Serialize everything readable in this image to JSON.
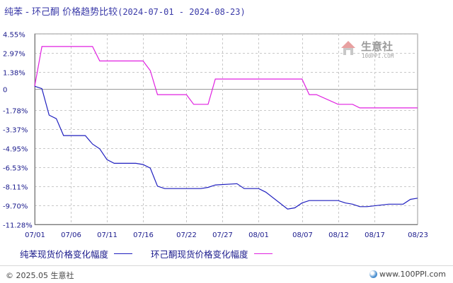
{
  "title": {
    "text": "纯苯 - 环己酮 价格趋势比较",
    "range": "(2024-07-01 - 2024-08-23)"
  },
  "legend": {
    "items": [
      {
        "label": "纯苯现货价格变化幅度",
        "color": "#1f1fbf"
      },
      {
        "label": "环己酮现货价格变化幅度",
        "color": "#e020e0"
      }
    ]
  },
  "watermark": {
    "name": "生意社",
    "url": "100PPI.COM"
  },
  "footer": {
    "copyright": "© 2025.05 生意社",
    "url": "www.100PPI.com"
  },
  "chart_data": {
    "type": "line",
    "title": "纯苯 - 环己酮 价格趋势比较",
    "xlabel": "",
    "ylabel": "",
    "x_ticks": [
      "07/01",
      "07/06",
      "07/11",
      "07/16",
      "07/22",
      "07/27",
      "08/01",
      "08/07",
      "08/12",
      "08/17",
      "08/23"
    ],
    "y_ticks": [
      "4.55%",
      "2.97%",
      "1.38%",
      "0",
      "-1.78%",
      "-3.37%",
      "-4.95%",
      "-6.53%",
      "-8.11%",
      "-9.70%",
      "-11.28%"
    ],
    "y_tick_values": [
      4.55,
      2.97,
      1.38,
      0,
      -1.78,
      -3.37,
      -4.95,
      -6.53,
      -8.11,
      -9.7,
      -11.28
    ],
    "ylim": [
      -11.28,
      4.55
    ],
    "x_range": [
      "07/01",
      "08/23"
    ],
    "grid": true,
    "legend_position": "bottom",
    "series": [
      {
        "name": "纯苯现货价格变化幅度",
        "color": "#1f1fbf",
        "points": [
          [
            "07/01",
            0.2
          ],
          [
            "07/02",
            0.0
          ],
          [
            "07/03",
            -2.2
          ],
          [
            "07/04",
            -2.5
          ],
          [
            "07/05",
            -3.9
          ],
          [
            "07/08",
            -3.9
          ],
          [
            "07/09",
            -4.6
          ],
          [
            "07/10",
            -5.0
          ],
          [
            "07/11",
            -5.9
          ],
          [
            "07/12",
            -6.2
          ],
          [
            "07/15",
            -6.2
          ],
          [
            "07/16",
            -6.3
          ],
          [
            "07/17",
            -6.6
          ],
          [
            "07/18",
            -8.1
          ],
          [
            "07/19",
            -8.3
          ],
          [
            "07/22",
            -8.3
          ],
          [
            "07/23",
            -8.3
          ],
          [
            "07/24",
            -8.3
          ],
          [
            "07/25",
            -8.2
          ],
          [
            "07/26",
            -8.0
          ],
          [
            "07/29",
            -7.9
          ],
          [
            "07/30",
            -8.3
          ],
          [
            "07/31",
            -8.3
          ],
          [
            "08/01",
            -8.3
          ],
          [
            "08/02",
            -8.6
          ],
          [
            "08/05",
            -10.0
          ],
          [
            "08/06",
            -9.9
          ],
          [
            "08/07",
            -9.5
          ],
          [
            "08/08",
            -9.3
          ],
          [
            "08/09",
            -9.3
          ],
          [
            "08/12",
            -9.3
          ],
          [
            "08/13",
            -9.5
          ],
          [
            "08/14",
            -9.6
          ],
          [
            "08/15",
            -9.8
          ],
          [
            "08/16",
            -9.8
          ],
          [
            "08/19",
            -9.6
          ],
          [
            "08/20",
            -9.6
          ],
          [
            "08/21",
            -9.6
          ],
          [
            "08/22",
            -9.2
          ],
          [
            "08/23",
            -9.1
          ]
        ]
      },
      {
        "name": "环己酮现货价格变化幅度",
        "color": "#e020e0",
        "points": [
          [
            "07/01",
            0.2
          ],
          [
            "07/02",
            3.5
          ],
          [
            "07/05",
            3.5
          ],
          [
            "07/08",
            3.5
          ],
          [
            "07/09",
            3.5
          ],
          [
            "07/10",
            2.3
          ],
          [
            "07/11",
            2.3
          ],
          [
            "07/16",
            2.3
          ],
          [
            "07/17",
            1.5
          ],
          [
            "07/18",
            -0.5
          ],
          [
            "07/19",
            -0.5
          ],
          [
            "07/22",
            -0.5
          ],
          [
            "07/23",
            -1.3
          ],
          [
            "07/24",
            -1.3
          ],
          [
            "07/25",
            -1.3
          ],
          [
            "07/26",
            0.8
          ],
          [
            "07/29",
            0.8
          ],
          [
            "08/05",
            0.8
          ],
          [
            "08/06",
            0.8
          ],
          [
            "08/07",
            0.8
          ],
          [
            "08/08",
            -0.5
          ],
          [
            "08/09",
            -0.5
          ],
          [
            "08/12",
            -1.3
          ],
          [
            "08/13",
            -1.3
          ],
          [
            "08/14",
            -1.3
          ],
          [
            "08/15",
            -1.6
          ],
          [
            "08/16",
            -1.6
          ],
          [
            "08/23",
            -1.6
          ]
        ]
      }
    ]
  }
}
